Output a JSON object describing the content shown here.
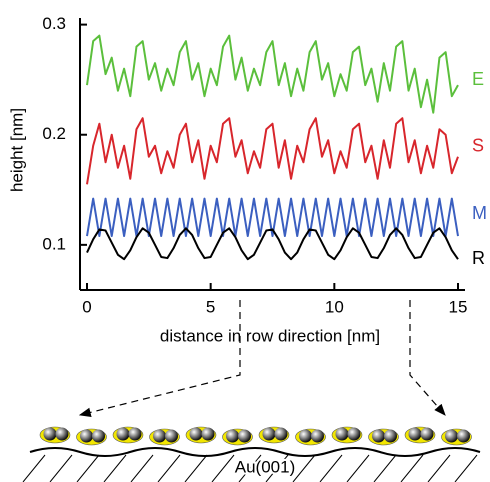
{
  "chart_data": {
    "type": "line",
    "x_label": "distance in row direction [nm]",
    "y_label": "height [nm]",
    "x": [
      0,
      0.25,
      0.5,
      0.75,
      1,
      1.25,
      1.5,
      1.75,
      2,
      2.25,
      2.5,
      2.75,
      3,
      3.25,
      3.5,
      3.75,
      4,
      4.25,
      4.5,
      4.75,
      5,
      5.25,
      5.5,
      5.75,
      6,
      6.25,
      6.5,
      6.75,
      7,
      7.25,
      7.5,
      7.75,
      8,
      8.25,
      8.5,
      8.75,
      9,
      9.25,
      9.5,
      9.75,
      10,
      10.25,
      10.5,
      10.75,
      11,
      11.25,
      11.5,
      11.75,
      12,
      12.25,
      12.5,
      12.75,
      13,
      13.25,
      13.5,
      13.75,
      14,
      14.25,
      14.5,
      14.75,
      15
    ],
    "series": [
      {
        "name": "E",
        "color": "#5bbf3c",
        "values": [
          0.245,
          0.285,
          0.29,
          0.255,
          0.27,
          0.24,
          0.26,
          0.235,
          0.28,
          0.285,
          0.25,
          0.265,
          0.24,
          0.26,
          0.245,
          0.275,
          0.285,
          0.25,
          0.265,
          0.235,
          0.26,
          0.245,
          0.28,
          0.29,
          0.25,
          0.27,
          0.24,
          0.26,
          0.245,
          0.275,
          0.285,
          0.245,
          0.265,
          0.235,
          0.26,
          0.24,
          0.275,
          0.285,
          0.25,
          0.265,
          0.235,
          0.255,
          0.24,
          0.275,
          0.28,
          0.245,
          0.26,
          0.23,
          0.265,
          0.24,
          0.28,
          0.285,
          0.24,
          0.26,
          0.225,
          0.25,
          0.22,
          0.27,
          0.275,
          0.235,
          0.245
        ]
      },
      {
        "name": "S",
        "color": "#d8262c",
        "values": [
          0.155,
          0.19,
          0.21,
          0.175,
          0.2,
          0.17,
          0.19,
          0.16,
          0.205,
          0.215,
          0.18,
          0.19,
          0.165,
          0.185,
          0.17,
          0.2,
          0.21,
          0.175,
          0.195,
          0.16,
          0.19,
          0.175,
          0.21,
          0.215,
          0.18,
          0.195,
          0.165,
          0.185,
          0.17,
          0.205,
          0.21,
          0.17,
          0.195,
          0.16,
          0.19,
          0.175,
          0.205,
          0.215,
          0.18,
          0.195,
          0.165,
          0.185,
          0.17,
          0.205,
          0.21,
          0.175,
          0.19,
          0.16,
          0.195,
          0.17,
          0.21,
          0.215,
          0.175,
          0.195,
          0.165,
          0.19,
          0.17,
          0.205,
          0.2,
          0.165,
          0.18
        ]
      },
      {
        "name": "M",
        "color": "#3b5fc0",
        "values": [
          0.108,
          0.142,
          0.108,
          0.142,
          0.108,
          0.142,
          0.108,
          0.142,
          0.108,
          0.142,
          0.108,
          0.142,
          0.108,
          0.142,
          0.108,
          0.142,
          0.108,
          0.142,
          0.108,
          0.142,
          0.108,
          0.142,
          0.108,
          0.142,
          0.108,
          0.142,
          0.108,
          0.142,
          0.108,
          0.142,
          0.108,
          0.142,
          0.108,
          0.142,
          0.108,
          0.142,
          0.108,
          0.142,
          0.108,
          0.142,
          0.108,
          0.142,
          0.108,
          0.142,
          0.108,
          0.142,
          0.108,
          0.142,
          0.108,
          0.142,
          0.108,
          0.142,
          0.108,
          0.142,
          0.108,
          0.142,
          0.108,
          0.142,
          0.108,
          0.142,
          0.108
        ]
      },
      {
        "name": "R",
        "color": "#000000",
        "values": [
          0.093,
          0.105,
          0.114,
          0.113,
          0.102,
          0.091,
          0.087,
          0.095,
          0.107,
          0.115,
          0.111,
          0.1,
          0.089,
          0.088,
          0.097,
          0.109,
          0.115,
          0.109,
          0.097,
          0.088,
          0.089,
          0.1,
          0.111,
          0.115,
          0.107,
          0.095,
          0.087,
          0.091,
          0.102,
          0.113,
          0.114,
          0.105,
          0.093,
          0.087,
          0.093,
          0.105,
          0.114,
          0.113,
          0.102,
          0.091,
          0.087,
          0.095,
          0.107,
          0.115,
          0.111,
          0.1,
          0.089,
          0.088,
          0.097,
          0.109,
          0.115,
          0.109,
          0.097,
          0.088,
          0.089,
          0.1,
          0.111,
          0.115,
          0.107,
          0.095,
          0.087
        ]
      }
    ],
    "xlim": [
      -0.283,
      15.283
    ],
    "ylim": [
      0.059,
      0.306
    ],
    "xticks": [
      0,
      5,
      10,
      15
    ],
    "yticks": [
      0.1,
      0.2,
      0.3
    ],
    "grid": false
  },
  "diagram": {
    "surface_label": "Au(001)"
  }
}
